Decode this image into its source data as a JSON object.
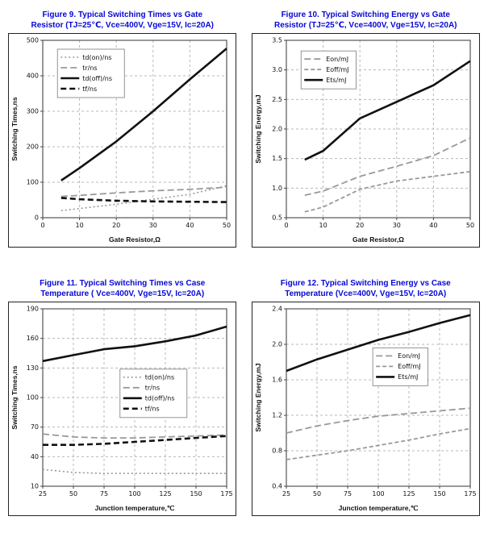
{
  "colors": {
    "figure_title": "#0707d6",
    "grid": "#b8b8b8",
    "series_gray": "#999999",
    "series_black": "#111111"
  },
  "chart_data": [
    {
      "key": "fig9",
      "type": "line",
      "title": [
        "Figure 9. Typical Switching Times vs Gate",
        "Resistor (TJ=25℃, Vce=400V, Vge=15V, Ic=20A)"
      ],
      "xlabel": "Gate Resistor,Ω",
      "ylabel": "Switching Times,ns",
      "xlim": [
        0,
        50
      ],
      "ylim": [
        0,
        500
      ],
      "xticks": [
        0,
        10,
        20,
        30,
        40,
        50
      ],
      "yticks": [
        0,
        100,
        200,
        300,
        400,
        500
      ],
      "ydec": 0,
      "grid": true,
      "legend_position": "top-left-inside",
      "x": [
        5,
        10,
        20,
        30,
        40,
        50
      ],
      "series": [
        {
          "name": "td(on)/ns",
          "color": "#999999",
          "dash": "2 3",
          "width": 1.6,
          "values": [
            20,
            26,
            38,
            52,
            66,
            90
          ]
        },
        {
          "name": "tr/ns",
          "color": "#999999",
          "dash": "8 4",
          "width": 1.8,
          "values": [
            60,
            63,
            70,
            76,
            80,
            86
          ]
        },
        {
          "name": "td(off)/ns",
          "color": "#111111",
          "dash": "",
          "width": 2.6,
          "values": [
            105,
            140,
            215,
            300,
            390,
            477
          ]
        },
        {
          "name": "tf/ns",
          "color": "#111111",
          "dash": "7 4",
          "width": 2.6,
          "values": [
            56,
            52,
            48,
            46,
            45,
            44
          ]
        }
      ],
      "legend": {
        "fx": 0.08,
        "fy": 0.05
      }
    },
    {
      "key": "fig10",
      "type": "line",
      "title": [
        "Figure 10. Typical Switching Energy vs Gate",
        "Resistor (TJ=25℃, Vce=400V, Vge=15V, Ic=20A)"
      ],
      "xlabel": "Gate Resistor,Ω",
      "ylabel": "Switching Energy,mJ",
      "xlim": [
        0,
        50
      ],
      "ylim": [
        0.5,
        3.5
      ],
      "xticks": [
        0,
        10,
        20,
        30,
        40,
        50
      ],
      "yticks": [
        0.5,
        1.0,
        1.5,
        2.0,
        2.5,
        3.0,
        3.5
      ],
      "ydec": 1,
      "grid": true,
      "legend_position": "top-left-inside",
      "x": [
        5,
        10,
        20,
        30,
        40,
        50
      ],
      "series": [
        {
          "name": "Eon/mJ",
          "color": "#999999",
          "dash": "8 4",
          "width": 1.8,
          "values": [
            0.88,
            0.95,
            1.2,
            1.37,
            1.55,
            1.85
          ]
        },
        {
          "name": "Eoff/mJ",
          "color": "#999999",
          "dash": "5 3",
          "width": 1.8,
          "values": [
            0.6,
            0.68,
            0.98,
            1.12,
            1.2,
            1.28
          ]
        },
        {
          "name": "Ets/mJ",
          "color": "#111111",
          "dash": "",
          "width": 2.6,
          "values": [
            1.48,
            1.63,
            2.18,
            2.46,
            2.74,
            3.15
          ]
        }
      ],
      "legend": {
        "fx": 0.08,
        "fy": 0.06
      }
    },
    {
      "key": "fig11",
      "type": "line",
      "title": [
        "Figure 11. Typical Switching Times vs Case",
        "Temperature ( Vce=400V, Vge=15V, Ic=20A)"
      ],
      "xlabel": "Junction temperature,℃",
      "ylabel": "Switching Times,ns",
      "xlim": [
        25,
        175
      ],
      "ylim": [
        10,
        190
      ],
      "xticks": [
        25,
        50,
        75,
        100,
        125,
        150,
        175
      ],
      "yticks": [
        10,
        40,
        70,
        100,
        130,
        160,
        190
      ],
      "ydec": 0,
      "grid": true,
      "legend_position": "middle-right-inside",
      "x": [
        25,
        50,
        75,
        100,
        125,
        150,
        175
      ],
      "series": [
        {
          "name": "td(on)/ns",
          "color": "#999999",
          "dash": "2 3",
          "width": 1.6,
          "values": [
            27,
            24,
            23,
            23,
            23,
            23,
            23
          ]
        },
        {
          "name": "tr/ns",
          "color": "#999999",
          "dash": "8 4",
          "width": 1.8,
          "values": [
            63,
            60,
            59,
            59,
            60,
            61,
            62
          ]
        },
        {
          "name": "td(off)/ns",
          "color": "#111111",
          "dash": "",
          "width": 2.6,
          "values": [
            137,
            143,
            149,
            152,
            157,
            163,
            172
          ]
        },
        {
          "name": "tf/ns",
          "color": "#111111",
          "dash": "7 4",
          "width": 2.6,
          "values": [
            52,
            52,
            53,
            55,
            57,
            59,
            61
          ]
        }
      ],
      "legend": {
        "fx": 0.42,
        "fy": 0.34
      }
    },
    {
      "key": "fig12",
      "type": "line",
      "title": [
        "Figure 12. Typical Switching Energy vs Case",
        "Temperature (Vce=400V, Vge=15V, Ic=20A)"
      ],
      "xlabel": "Junction temperature,℃",
      "ylabel": "Switching Energy,mJ",
      "xlim": [
        25,
        175
      ],
      "ylim": [
        0.4,
        2.4
      ],
      "xticks": [
        25,
        50,
        75,
        100,
        125,
        150,
        175
      ],
      "yticks": [
        0.4,
        0.8,
        1.2,
        1.6,
        2.0,
        2.4
      ],
      "ydec": 1,
      "grid": true,
      "legend_position": "middle-right-inside",
      "x": [
        25,
        50,
        75,
        100,
        125,
        150,
        175
      ],
      "series": [
        {
          "name": "Eon/mJ",
          "color": "#999999",
          "dash": "8 4",
          "width": 1.8,
          "values": [
            1.0,
            1.08,
            1.14,
            1.19,
            1.22,
            1.25,
            1.28
          ]
        },
        {
          "name": "Eoff/mJ",
          "color": "#999999",
          "dash": "5 3",
          "width": 1.8,
          "values": [
            0.7,
            0.75,
            0.8,
            0.86,
            0.92,
            0.99,
            1.05
          ]
        },
        {
          "name": "Ets/mJ",
          "color": "#111111",
          "dash": "",
          "width": 2.6,
          "values": [
            1.7,
            1.83,
            1.94,
            2.05,
            2.14,
            2.24,
            2.33
          ]
        }
      ],
      "legend": {
        "fx": 0.47,
        "fy": 0.22
      }
    }
  ]
}
